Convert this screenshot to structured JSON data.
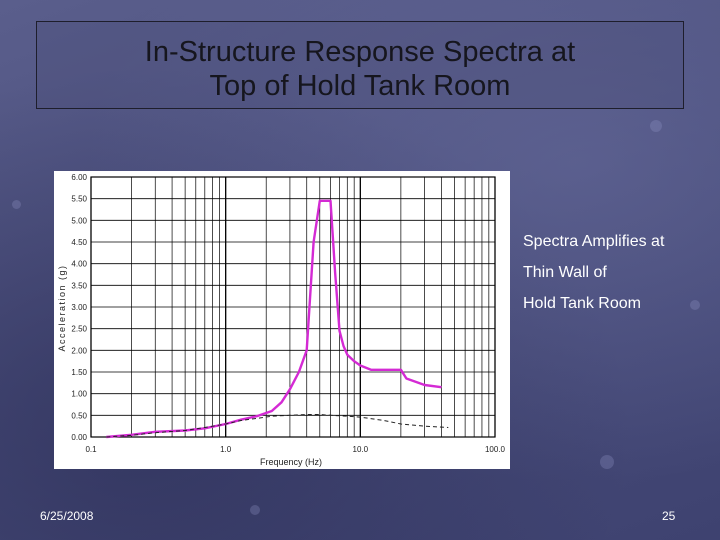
{
  "slide": {
    "title_line1": "In-Structure Response Spectra at",
    "title_line2": "Top of Hold Tank Room",
    "side_note": [
      "Spectra Amplifies at",
      "Thin Wall of",
      "Hold Tank Room"
    ],
    "date": "6/25/2008",
    "page_number": "25"
  },
  "chart_data": {
    "type": "line",
    "title": "",
    "xlabel": "Frequency (Hz)",
    "ylabel": "Acceleration (g)",
    "x_scale": "log",
    "xlim": [
      0.1,
      100.0
    ],
    "ylim": [
      0.0,
      6.0
    ],
    "x_tick_labels": [
      "0.1",
      "1.0",
      "10.0",
      "100.0"
    ],
    "y_tick_labels": [
      "0.00",
      "0.50",
      "1.00",
      "1.50",
      "2.00",
      "2.50",
      "3.00",
      "3.50",
      "4.00",
      "4.50",
      "5.00",
      "5.50",
      "6.00"
    ],
    "grid": true,
    "series": [
      {
        "style": "solid",
        "color": "#d42ad4",
        "x": [
          0.13,
          0.2,
          0.3,
          0.5,
          0.7,
          1.0,
          1.3,
          1.7,
          2.2,
          2.6,
          3.0,
          3.5,
          4.0,
          4.5,
          5.0,
          5.5,
          6.0,
          6.5,
          7.0,
          7.5,
          8.0,
          9.0,
          10.0,
          12.0,
          14.0,
          17.0,
          20.0,
          22.0,
          30.0,
          40.0
        ],
        "y": [
          0.0,
          0.05,
          0.12,
          0.15,
          0.2,
          0.3,
          0.4,
          0.48,
          0.6,
          0.8,
          1.1,
          1.5,
          2.0,
          4.5,
          5.45,
          5.45,
          5.45,
          3.8,
          2.45,
          2.1,
          1.9,
          1.75,
          1.65,
          1.55,
          1.55,
          1.55,
          1.55,
          1.35,
          1.2,
          1.15
        ]
      },
      {
        "style": "dashed",
        "color": "#222222",
        "x": [
          0.13,
          0.2,
          0.3,
          0.5,
          0.7,
          1.0,
          1.3,
          1.7,
          2.2,
          3.0,
          4.0,
          5.0,
          6.0,
          8.0,
          10.0,
          15.0,
          20.0,
          30.0,
          45.0
        ],
        "y": [
          0.0,
          0.04,
          0.1,
          0.15,
          0.22,
          0.3,
          0.38,
          0.43,
          0.48,
          0.5,
          0.52,
          0.52,
          0.5,
          0.48,
          0.46,
          0.38,
          0.3,
          0.25,
          0.22
        ]
      }
    ]
  }
}
